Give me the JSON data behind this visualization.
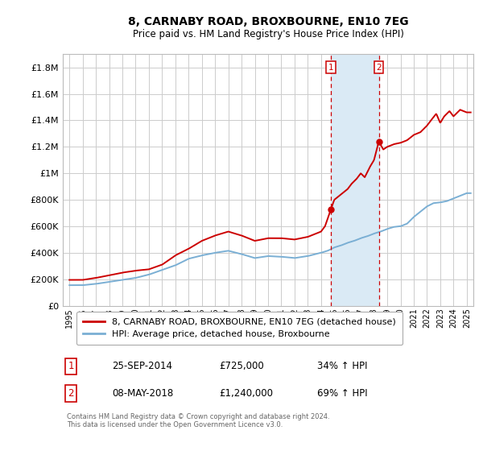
{
  "title": "8, CARNABY ROAD, BROXBOURNE, EN10 7EG",
  "subtitle": "Price paid vs. HM Land Registry's House Price Index (HPI)",
  "sale1_date": "25-SEP-2014",
  "sale1_price": "£725,000",
  "sale1_hpi": "34% ↑ HPI",
  "sale2_date": "08-MAY-2018",
  "sale2_price": "£1,240,000",
  "sale2_hpi": "69% ↑ HPI",
  "legend1": "8, CARNABY ROAD, BROXBOURNE, EN10 7EG (detached house)",
  "legend2": "HPI: Average price, detached house, Broxbourne",
  "footer": "Contains HM Land Registry data © Crown copyright and database right 2024.\nThis data is licensed under the Open Government Licence v3.0.",
  "red_color": "#cc0000",
  "blue_color": "#7aafd4",
  "shade_color": "#daeaf5",
  "grid_color": "#cccccc",
  "ylim": [
    0,
    1900000
  ],
  "xlim_start": 1994.5,
  "xlim_end": 2025.5,
  "sale1_x": 2014.73,
  "sale2_x": 2018.36,
  "sale1_y_red": 725000,
  "sale2_y_red": 1240000,
  "years_hpi": [
    1995,
    1996,
    1997,
    1998,
    1999,
    2000,
    2001,
    2002,
    2003,
    2004,
    2005,
    2006,
    2007,
    2008,
    2009,
    2010,
    2011,
    2012,
    2013,
    2014,
    2014.5,
    2015,
    2015.5,
    2016,
    2016.5,
    2017,
    2017.5,
    2018,
    2018.5,
    2019,
    2019.5,
    2020,
    2020.5,
    2021,
    2021.5,
    2022,
    2022.5,
    2023,
    2023.5,
    2024,
    2024.5,
    2025
  ],
  "hpi_vals": [
    155000,
    155000,
    165000,
    180000,
    195000,
    210000,
    235000,
    270000,
    305000,
    355000,
    380000,
    400000,
    415000,
    390000,
    360000,
    375000,
    370000,
    360000,
    375000,
    400000,
    415000,
    440000,
    455000,
    475000,
    490000,
    510000,
    525000,
    545000,
    560000,
    580000,
    595000,
    600000,
    620000,
    670000,
    710000,
    750000,
    775000,
    780000,
    790000,
    810000,
    830000,
    850000
  ],
  "red_years": [
    1995,
    1996,
    1997,
    1998,
    1999,
    2000,
    2001,
    2002,
    2003,
    2004,
    2005,
    2006,
    2007,
    2008,
    2009,
    2010,
    2011,
    2012,
    2013,
    2014,
    2014.3,
    2014.73,
    2015,
    2015.5,
    2016,
    2016.3,
    2016.7,
    2017,
    2017.3,
    2017.7,
    2018,
    2018.36,
    2018.7,
    2019,
    2019.5,
    2020,
    2020.5,
    2021,
    2021.5,
    2022,
    2022.3,
    2022.7,
    2023,
    2023.3,
    2023.7,
    2024,
    2024.5,
    2025
  ],
  "red_vals": [
    195000,
    195000,
    210000,
    230000,
    250000,
    265000,
    275000,
    310000,
    380000,
    430000,
    490000,
    530000,
    560000,
    530000,
    490000,
    510000,
    510000,
    500000,
    520000,
    560000,
    600000,
    725000,
    800000,
    840000,
    880000,
    920000,
    960000,
    1000000,
    970000,
    1050000,
    1100000,
    1240000,
    1180000,
    1200000,
    1220000,
    1230000,
    1250000,
    1290000,
    1310000,
    1360000,
    1400000,
    1450000,
    1380000,
    1430000,
    1470000,
    1430000,
    1480000,
    1460000
  ]
}
